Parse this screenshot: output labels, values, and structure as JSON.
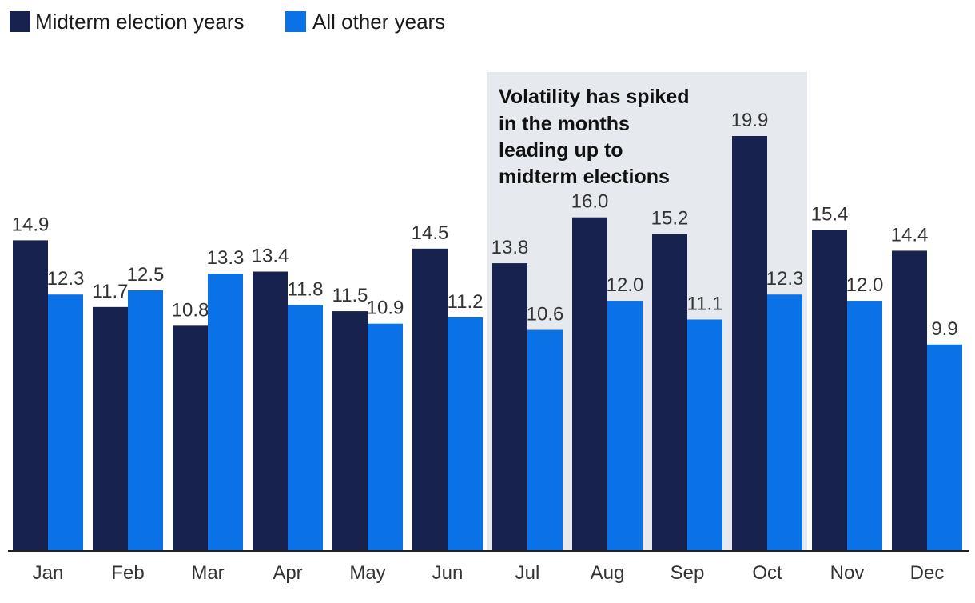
{
  "chart_data": {
    "type": "bar",
    "categories": [
      "Jan",
      "Feb",
      "Mar",
      "Apr",
      "May",
      "Jun",
      "Jul",
      "Aug",
      "Sep",
      "Oct",
      "Nov",
      "Dec"
    ],
    "series": [
      {
        "name": "Midterm election years",
        "color": "#17224f",
        "values": [
          14.9,
          11.7,
          10.8,
          13.4,
          11.5,
          14.5,
          13.8,
          16.0,
          15.2,
          19.9,
          15.4,
          14.4
        ]
      },
      {
        "name": "All other years",
        "color": "#0a72e6",
        "values": [
          12.3,
          12.5,
          13.3,
          11.8,
          10.9,
          11.2,
          10.6,
          12.0,
          11.1,
          12.3,
          12.0,
          9.9
        ]
      }
    ],
    "ylim": [
      0,
      20.3
    ],
    "grid": false,
    "legend_position": "top-left",
    "annotation": {
      "text_lines": [
        "Volatility has spiked",
        "in the months",
        "leading up to",
        "midterm elections"
      ],
      "highlight_from": "Jul",
      "highlight_to": "Oct",
      "highlight_color": "#e6eaee"
    }
  }
}
